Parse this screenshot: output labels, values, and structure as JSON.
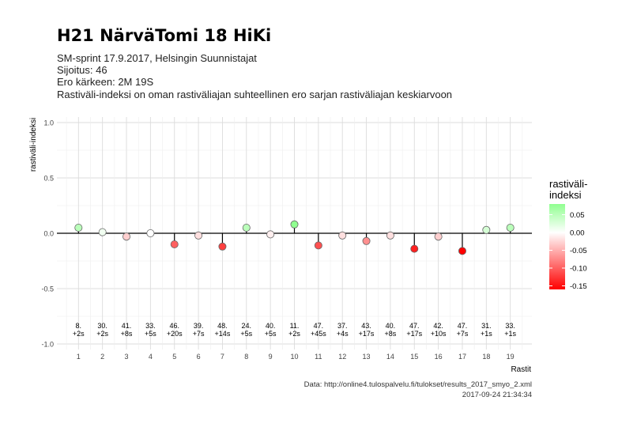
{
  "title": "H21 NärväTomi 18 HiKi",
  "subtitle_lines": [
    "SM-sprint 17.9.2017, Helsingin Suunnistajat",
    "Sijoitus: 46",
    "Ero kärkeen: 2M 19S",
    "Rastiväli-indeksi on oman rastiväliajan suhteellinen ero sarjan rastiväliajan keskiarvoon"
  ],
  "caption_lines": [
    "Data: http://online4.tulospalvelu.fi/tulokset/results_2017_smyo_2.xml",
    "2017-09-24 21:34:34"
  ],
  "chart_data": {
    "type": "scatter",
    "xlabel": "Rastit",
    "ylabel": "rastiväli-indeksi",
    "x": [
      1,
      2,
      3,
      4,
      5,
      6,
      7,
      8,
      9,
      10,
      11,
      12,
      13,
      14,
      15,
      16,
      17,
      18,
      19
    ],
    "values": [
      0.05,
      0.01,
      -0.03,
      0.0,
      -0.1,
      -0.02,
      -0.12,
      0.05,
      -0.01,
      0.08,
      -0.11,
      -0.02,
      -0.07,
      -0.02,
      -0.14,
      -0.03,
      -0.16,
      0.03,
      0.05
    ],
    "point_labels": [
      [
        "8.",
        "+2s"
      ],
      [
        "30.",
        "+2s"
      ],
      [
        "41.",
        "+8s"
      ],
      [
        "33.",
        "+5s"
      ],
      [
        "46.",
        "+20s"
      ],
      [
        "39.",
        "+7s"
      ],
      [
        "48.",
        "+14s"
      ],
      [
        "24.",
        "+5s"
      ],
      [
        "40.",
        "+5s"
      ],
      [
        "11.",
        "+2s"
      ],
      [
        "47.",
        "+45s"
      ],
      [
        "37.",
        "+4s"
      ],
      [
        "43.",
        "+17s"
      ],
      [
        "40.",
        "+8s"
      ],
      [
        "47.",
        "+17s"
      ],
      [
        "42.",
        "+10s"
      ],
      [
        "47.",
        "+7s"
      ],
      [
        "31.",
        "+1s"
      ],
      [
        "33.",
        "+1s"
      ]
    ],
    "ylim": [
      -1.05,
      1.05
    ],
    "yticks": [
      -1.0,
      -0.5,
      0.0,
      0.5,
      1.0
    ],
    "ytick_labels": [
      "-1.0",
      "-0.5",
      "0.0",
      "0.5",
      "1.0"
    ],
    "grid": true,
    "legend": {
      "title_lines": [
        "rastiväli-",
        "indeksi"
      ],
      "ticks": [
        0.05,
        0.0,
        -0.05,
        -0.1,
        -0.15
      ],
      "tick_labels": [
        "0.05",
        "0.00",
        "-0.05",
        "-0.10",
        "-0.15"
      ],
      "range": [
        -0.16,
        0.08
      ],
      "low_color": "#ff0000",
      "mid_color": "#ffffff",
      "high_color": "#90ff90",
      "placement": "right"
    }
  }
}
